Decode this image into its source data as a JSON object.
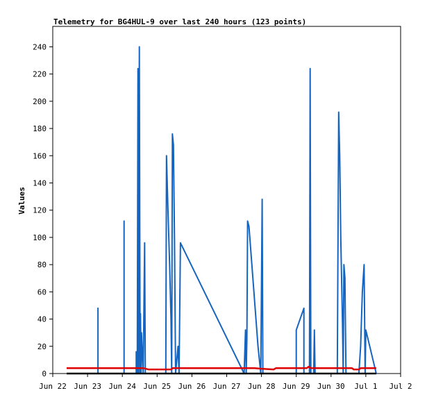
{
  "chart_data": {
    "type": "line",
    "title": "Telemetry for BG4HUL-9 over last 240 hours (123 points)",
    "xlabel": "",
    "ylabel": "Values",
    "ylim": [
      0,
      255
    ],
    "yticks": [
      0,
      20,
      40,
      60,
      80,
      100,
      120,
      140,
      160,
      180,
      200,
      220,
      240
    ],
    "xlim": [
      0,
      10
    ],
    "xticks": [
      {
        "x": 0,
        "label": "Jun 22"
      },
      {
        "x": 1,
        "label": "Jun 23"
      },
      {
        "x": 2,
        "label": "Jun 24"
      },
      {
        "x": 3,
        "label": "Jun 25"
      },
      {
        "x": 4,
        "label": "Jun 26"
      },
      {
        "x": 5,
        "label": "Jun 27"
      },
      {
        "x": 6,
        "label": "Jun 28"
      },
      {
        "x": 7,
        "label": "Jun 29"
      },
      {
        "x": 8,
        "label": "Jun 30"
      },
      {
        "x": 9,
        "label": "Jul 1"
      },
      {
        "x": 10,
        "label": "Jul 2"
      }
    ],
    "grid": false,
    "series": [
      {
        "name": "",
        "color": "#1565c0",
        "points": [
          [
            0.4,
            0
          ],
          [
            1.3,
            0
          ],
          [
            1.3,
            48
          ],
          [
            1.3,
            0
          ],
          [
            2.05,
            0
          ],
          [
            2.05,
            112
          ],
          [
            2.05,
            0
          ],
          [
            2.4,
            0
          ],
          [
            2.4,
            16
          ],
          [
            2.43,
            0
          ],
          [
            2.45,
            224
          ],
          [
            2.47,
            0
          ],
          [
            2.49,
            240
          ],
          [
            2.51,
            0
          ],
          [
            2.52,
            44
          ],
          [
            2.54,
            0
          ],
          [
            2.55,
            30
          ],
          [
            2.6,
            0
          ],
          [
            2.64,
            96
          ],
          [
            2.66,
            0
          ],
          [
            3.25,
            0
          ],
          [
            3.27,
            160
          ],
          [
            3.31,
            122
          ],
          [
            3.36,
            80
          ],
          [
            3.4,
            40
          ],
          [
            3.42,
            0
          ],
          [
            3.44,
            176
          ],
          [
            3.47,
            168
          ],
          [
            3.5,
            100
          ],
          [
            3.53,
            0
          ],
          [
            3.6,
            20
          ],
          [
            3.63,
            0
          ],
          [
            3.67,
            96
          ],
          [
            5.5,
            0
          ],
          [
            5.54,
            32
          ],
          [
            5.56,
            0
          ],
          [
            5.58,
            26
          ],
          [
            5.6,
            112
          ],
          [
            5.64,
            108
          ],
          [
            5.9,
            20
          ],
          [
            5.98,
            0
          ],
          [
            6.02,
            128
          ],
          [
            6.04,
            0
          ],
          [
            7.0,
            0
          ],
          [
            7.0,
            32
          ],
          [
            7.22,
            48
          ],
          [
            7.22,
            0
          ],
          [
            7.38,
            0
          ],
          [
            7.4,
            224
          ],
          [
            7.42,
            0
          ],
          [
            7.5,
            0
          ],
          [
            7.52,
            32
          ],
          [
            7.54,
            0
          ],
          [
            8.18,
            0
          ],
          [
            8.22,
            192
          ],
          [
            8.25,
            160
          ],
          [
            8.28,
            100
          ],
          [
            8.33,
            36
          ],
          [
            8.35,
            0
          ],
          [
            8.37,
            80
          ],
          [
            8.4,
            70
          ],
          [
            8.43,
            0
          ],
          [
            8.8,
            0
          ],
          [
            8.85,
            20
          ],
          [
            8.9,
            60
          ],
          [
            8.95,
            80
          ],
          [
            8.98,
            0
          ],
          [
            9.0,
            32
          ],
          [
            9.3,
            0
          ]
        ]
      },
      {
        "name": "",
        "color": "#dd0000",
        "points": [
          [
            0.4,
            4
          ],
          [
            2.6,
            4
          ],
          [
            2.75,
            3
          ],
          [
            3.4,
            3
          ],
          [
            3.45,
            4
          ],
          [
            5.8,
            4
          ],
          [
            6.0,
            3.5
          ],
          [
            6.35,
            3
          ],
          [
            6.42,
            4
          ],
          [
            7.3,
            4
          ],
          [
            7.36,
            5
          ],
          [
            7.42,
            4
          ],
          [
            8.6,
            4
          ],
          [
            8.65,
            3
          ],
          [
            8.8,
            3
          ],
          [
            8.85,
            4
          ],
          [
            9.3,
            4
          ]
        ]
      },
      {
        "name": "",
        "color": "#000000",
        "points": [
          [
            0.4,
            0
          ],
          [
            9.3,
            0
          ]
        ]
      }
    ]
  }
}
